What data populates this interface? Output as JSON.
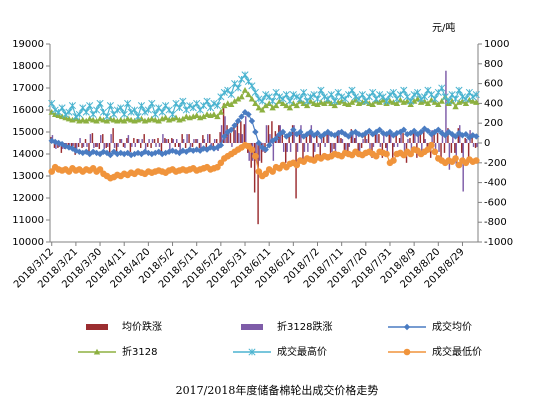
{
  "chart_data": {
    "type": "combo",
    "title": "2017/2018年度储备棉轮出成交价格走势",
    "y2_unit": "元/吨",
    "categories": [
      "2018/3/12",
      null,
      null,
      null,
      null,
      null,
      null,
      "2018/3/21",
      null,
      null,
      null,
      null,
      null,
      null,
      "2018/3/30",
      null,
      null,
      null,
      null,
      null,
      null,
      "2018/4/11",
      null,
      null,
      null,
      null,
      null,
      null,
      "2018/4/20",
      null,
      null,
      null,
      null,
      null,
      null,
      "2018/5/2",
      null,
      null,
      null,
      null,
      null,
      null,
      "2018/5/11",
      null,
      null,
      null,
      null,
      null,
      null,
      "2018/5/22",
      null,
      null,
      null,
      null,
      null,
      null,
      "2018/5/31",
      null,
      null,
      null,
      null,
      null,
      null,
      "2018/6/11",
      null,
      null,
      null,
      null,
      null,
      null,
      "2018/6/21",
      null,
      null,
      null,
      null,
      null,
      null,
      "2018/7/2",
      null,
      null,
      null,
      null,
      null,
      null,
      "2018/7/11",
      null,
      null,
      null,
      null,
      null,
      null,
      "2018/7/20",
      null,
      null,
      null,
      null,
      null,
      null,
      "2018/7/31",
      null,
      null,
      null,
      null,
      null,
      null,
      "2018/8/9",
      null,
      null,
      null,
      null,
      null,
      null,
      "2018/8/20",
      null,
      null,
      null,
      null,
      null,
      null,
      "2018/8/29",
      null,
      null,
      null,
      null
    ],
    "ylim": [
      10000,
      19000
    ],
    "yticks": [
      10000,
      11000,
      12000,
      13000,
      14000,
      15000,
      16000,
      17000,
      18000,
      19000
    ],
    "y2lim": [
      -1000,
      1000
    ],
    "y2ticks": [
      -1000,
      -800,
      -600,
      -400,
      -200,
      0,
      200,
      400,
      600,
      800,
      1000
    ],
    "series": [
      {
        "name": "均价跌涨",
        "type": "bar",
        "axis": "y2",
        "color": "#9b2d30",
        "values": [
          60,
          -50,
          -50,
          -100,
          -60,
          -40,
          -50,
          -120,
          -40,
          -50,
          40,
          -90,
          100,
          -40,
          -60,
          90,
          -50,
          -100,
          150,
          -90,
          40,
          -40,
          50,
          -90,
          50,
          40,
          -50,
          90,
          -40,
          -50,
          40,
          50,
          -90,
          50,
          40,
          50,
          -40,
          -40,
          90,
          -50,
          90,
          -40,
          40,
          -50,
          80,
          -50,
          90,
          -50,
          40,
          110,
          400,
          180,
          100,
          180,
          200,
          220,
          190,
          -100,
          -250,
          -500,
          -820,
          -200,
          -100,
          180,
          220,
          120,
          180,
          90,
          -200,
          100,
          180,
          -560,
          90,
          -180,
          90,
          100,
          -150,
          100,
          -150,
          90,
          100,
          -100,
          -60,
          100,
          50,
          -100,
          -100,
          140,
          50,
          -100,
          -50,
          100,
          90,
          -150,
          100,
          90,
          -150,
          -50,
          100,
          -150,
          90,
          50,
          100,
          -200,
          50,
          100,
          -150,
          100,
          140,
          -100,
          -150,
          100,
          100,
          -150,
          -100,
          150,
          -100,
          -100,
          150,
          -100,
          50,
          -150,
          100,
          -50
        ]
      },
      {
        "name": "折3128跌涨",
        "type": "bar",
        "axis": "y2",
        "color": "#7e5ca8",
        "values": [
          80,
          -60,
          -40,
          -60,
          -50,
          -50,
          -30,
          -60,
          50,
          -40,
          -40,
          90,
          -50,
          -40,
          80,
          -60,
          -40,
          90,
          -50,
          -40,
          40,
          -50,
          80,
          -40,
          -40,
          40,
          40,
          -90,
          40,
          40,
          -40,
          -40,
          90,
          40,
          -80,
          40,
          40,
          -80,
          40,
          90,
          -40,
          40,
          40,
          -80,
          40,
          90,
          -40,
          40,
          -80,
          180,
          270,
          100,
          -40,
          130,
          100,
          90,
          270,
          -180,
          -180,
          -180,
          -180,
          -90,
          180,
          90,
          -180,
          90,
          180,
          -90,
          -90,
          -90,
          180,
          -90,
          180,
          -90,
          -90,
          180,
          -90,
          -40,
          90,
          -40,
          90,
          -90,
          -90,
          130,
          40,
          -90,
          -40,
          90,
          90,
          -130,
          40,
          40,
          -90,
          -40,
          130,
          -40,
          90,
          -130,
          90,
          -40,
          -40,
          130,
          -90,
          40,
          -130,
          130,
          90,
          -130,
          40,
          -90,
          130,
          -90,
          -90,
          130,
          730,
          -270,
          90,
          -230,
          180,
          -490,
          40,
          130,
          -40,
          -40
        ]
      },
      {
        "name": "成交均价",
        "type": "line",
        "marker": "diamond",
        "color": "#4a7cc2",
        "values": [
          14600,
          14550,
          14500,
          14450,
          14350,
          14300,
          14250,
          14150,
          14100,
          14050,
          14100,
          14000,
          14100,
          14050,
          14000,
          14100,
          14050,
          13950,
          14100,
          14000,
          14050,
          14000,
          14050,
          13950,
          14000,
          14050,
          14000,
          14100,
          14050,
          14000,
          14050,
          14100,
          14000,
          14050,
          14100,
          14150,
          14100,
          14050,
          14150,
          14100,
          14200,
          14150,
          14200,
          14150,
          14250,
          14200,
          14300,
          14250,
          14300,
          14400,
          14800,
          15000,
          15100,
          15300,
          15500,
          15700,
          15900,
          15800,
          15500,
          15000,
          14500,
          14300,
          14200,
          14400,
          14600,
          14700,
          14900,
          15000,
          14800,
          14900,
          15100,
          14900,
          15000,
          14800,
          14900,
          15000,
          14850,
          14950,
          14800,
          14900,
          15000,
          14900,
          14850,
          14950,
          15000,
          14900,
          14800,
          14950,
          15000,
          14900,
          14850,
          14950,
          15050,
          14900,
          15000,
          15100,
          14950,
          14900,
          15000,
          14850,
          14950,
          15000,
          15100,
          14900,
          14950,
          15050,
          14900,
          15000,
          15150,
          15050,
          14900,
          15000,
          15100,
          14950,
          14850,
          15000,
          14900,
          14800,
          14950,
          14850,
          14900,
          14750,
          14850,
          14800
        ]
      },
      {
        "name": "折3128",
        "type": "line",
        "marker": "triangle",
        "color": "#8db040",
        "values": [
          15900,
          15800,
          15750,
          15700,
          15650,
          15600,
          15550,
          15600,
          15500,
          15550,
          15500,
          15600,
          15550,
          15500,
          15600,
          15550,
          15500,
          15600,
          15550,
          15500,
          15550,
          15500,
          15600,
          15550,
          15500,
          15550,
          15600,
          15500,
          15550,
          15600,
          15550,
          15500,
          15600,
          15650,
          15550,
          15600,
          15650,
          15550,
          15600,
          15700,
          15650,
          15700,
          15750,
          15650,
          15700,
          15800,
          15750,
          15800,
          15700,
          15900,
          16200,
          16300,
          16250,
          16400,
          16500,
          16600,
          16900,
          16700,
          16500,
          16300,
          16100,
          16000,
          16200,
          16300,
          16100,
          16200,
          16400,
          16300,
          16200,
          16100,
          16300,
          16200,
          16400,
          16300,
          16200,
          16400,
          16300,
          16250,
          16350,
          16300,
          16400,
          16300,
          16200,
          16350,
          16400,
          16300,
          16250,
          16350,
          16450,
          16300,
          16350,
          16400,
          16300,
          16250,
          16400,
          16350,
          16450,
          16300,
          16400,
          16350,
          16300,
          16450,
          16350,
          16400,
          16250,
          16400,
          16500,
          16350,
          16400,
          16300,
          16450,
          16350,
          16250,
          16400,
          16600,
          16300,
          16400,
          16150,
          16350,
          16400,
          16300,
          16450,
          16400,
          16350
        ]
      },
      {
        "name": "成交最高价",
        "type": "line",
        "marker": "cross",
        "color": "#4bb4d0",
        "values": [
          16300,
          16000,
          15900,
          16100,
          15800,
          15900,
          16200,
          15700,
          15800,
          16100,
          15900,
          16200,
          15800,
          16000,
          16300,
          15900,
          15700,
          16200,
          15800,
          16000,
          16100,
          15800,
          16300,
          15900,
          16000,
          15700,
          16200,
          15900,
          16000,
          16300,
          15800,
          16100,
          15900,
          16200,
          16000,
          15800,
          16300,
          16100,
          16400,
          16000,
          16200,
          16100,
          16300,
          16000,
          16200,
          16400,
          16100,
          16300,
          16200,
          16600,
          16800,
          16900,
          16700,
          17200,
          17000,
          17400,
          17600,
          17300,
          17100,
          16800,
          16500,
          16400,
          16700,
          16600,
          16400,
          16800,
          16600,
          16500,
          16700,
          16400,
          16700,
          16600,
          16500,
          16800,
          16400,
          16600,
          16700,
          16500,
          16900,
          16600,
          16500,
          16700,
          16400,
          16800,
          16600,
          16500,
          16700,
          16900,
          16600,
          16500,
          16700,
          16400,
          16600,
          16800,
          16500,
          16700,
          16600,
          16400,
          16700,
          16800,
          16500,
          16700,
          16900,
          16600,
          16400,
          16700,
          16800,
          16500,
          16600,
          16900,
          16700,
          16500,
          16800,
          17000,
          16600,
          16400,
          16700,
          16500,
          16900,
          16600,
          16500,
          16800,
          16600,
          16700
        ]
      },
      {
        "name": "成交最低价",
        "type": "line",
        "marker": "circle",
        "color": "#f0943c",
        "values": [
          13200,
          13400,
          13300,
          13250,
          13300,
          13200,
          13350,
          13250,
          13300,
          13200,
          13300,
          13250,
          13350,
          13200,
          13300,
          13100,
          13000,
          12900,
          12950,
          13050,
          13000,
          13100,
          13050,
          13150,
          13100,
          13200,
          13150,
          13100,
          13200,
          13150,
          13200,
          13250,
          13200,
          13150,
          13250,
          13300,
          13200,
          13250,
          13300,
          13250,
          13300,
          13350,
          13250,
          13300,
          13350,
          13400,
          13300,
          13350,
          13400,
          13600,
          13800,
          13900,
          14000,
          14100,
          14200,
          14300,
          14400,
          14350,
          14200,
          13900,
          13200,
          13000,
          13100,
          13300,
          13200,
          13400,
          13350,
          13500,
          13400,
          13550,
          13600,
          13500,
          13700,
          13650,
          13800,
          13750,
          13700,
          13850,
          13800,
          13900,
          13850,
          13900,
          14000,
          13950,
          13900,
          14050,
          14000,
          13950,
          14100,
          14000,
          13950,
          14050,
          14100,
          14000,
          13900,
          14100,
          14050,
          14000,
          13600,
          13700,
          14000,
          14050,
          13950,
          14100,
          14000,
          14200,
          14150,
          14000,
          14100,
          14200,
          14400,
          14100,
          13800,
          13700,
          13600,
          13700,
          13650,
          13800,
          13500,
          13700,
          13600,
          13750,
          13650,
          13700
        ]
      }
    ]
  }
}
